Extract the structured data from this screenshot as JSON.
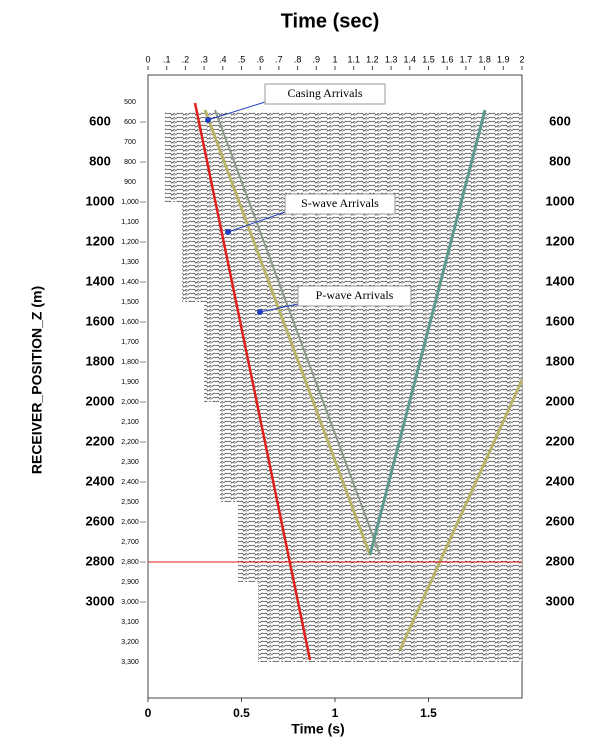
{
  "chart_data": {
    "type": "seismic",
    "x2label": "Time (sec)",
    "xlabel": "Time (s)",
    "ylabel": "RECEIVER_POSITION_Z (m)",
    "xlim": [
      0,
      2
    ],
    "xticks": [
      0,
      0.5,
      1,
      1.5
    ],
    "x2ticks": [
      0,
      {
        "value": 0.1,
        "label": ".1"
      },
      {
        "value": 0.2,
        "label": ".2"
      },
      {
        "value": 0.3,
        "label": ".3"
      },
      {
        "value": 0.4,
        "label": ".4"
      },
      {
        "value": 0.5,
        "label": ".5"
      },
      {
        "value": 0.6,
        "label": ".6"
      },
      {
        "value": 0.7,
        "label": ".7"
      },
      {
        "value": 0.8,
        "label": ".8"
      },
      {
        "value": 0.9,
        "label": ".9"
      },
      1,
      1.1,
      1.2,
      1.3,
      1.4,
      1.5,
      1.6,
      1.7,
      1.8,
      1.9,
      2
    ],
    "ylim": [
      3480,
      365
    ],
    "yticks": [
      600,
      800,
      1000,
      1200,
      1400,
      1600,
      1800,
      2000,
      2200,
      2400,
      2600,
      2800,
      3000
    ],
    "depth_ticks": [
      500,
      600,
      700,
      800,
      900,
      {
        "value": 1000,
        "label": "1,000"
      },
      {
        "value": 1100,
        "label": "1,100"
      },
      {
        "value": 1200,
        "label": "1,200"
      },
      {
        "value": 1300,
        "label": "1,300"
      },
      {
        "value": 1400,
        "label": "1,400"
      },
      {
        "value": 1500,
        "label": "1,500"
      },
      {
        "value": 1600,
        "label": "1,600"
      },
      {
        "value": 1700,
        "label": "1,700"
      },
      {
        "value": 1800,
        "label": "1,800"
      },
      {
        "value": 1900,
        "label": "1,900"
      },
      {
        "value": 2000,
        "label": "2,000"
      },
      {
        "value": 2100,
        "label": "2,100"
      },
      {
        "value": 2200,
        "label": "2,200"
      },
      {
        "value": 2300,
        "label": "2,300"
      },
      {
        "value": 2400,
        "label": "2,400"
      },
      {
        "value": 2500,
        "label": "2,500"
      },
      {
        "value": 2600,
        "label": "2,600"
      },
      {
        "value": 2700,
        "label": "2,700"
      },
      {
        "value": 2800,
        "label": "2,800"
      },
      {
        "value": 2900,
        "label": "2,900"
      },
      {
        "value": 3000,
        "label": "3,000"
      },
      {
        "value": 3100,
        "label": "3,100"
      },
      {
        "value": 3200,
        "label": "3,200"
      },
      {
        "value": 3300,
        "label": "3,300"
      }
    ],
    "annotations": [
      "Casing Arrivals",
      "S-wave Arrivals",
      "P-wave Arrivals"
    ]
  }
}
